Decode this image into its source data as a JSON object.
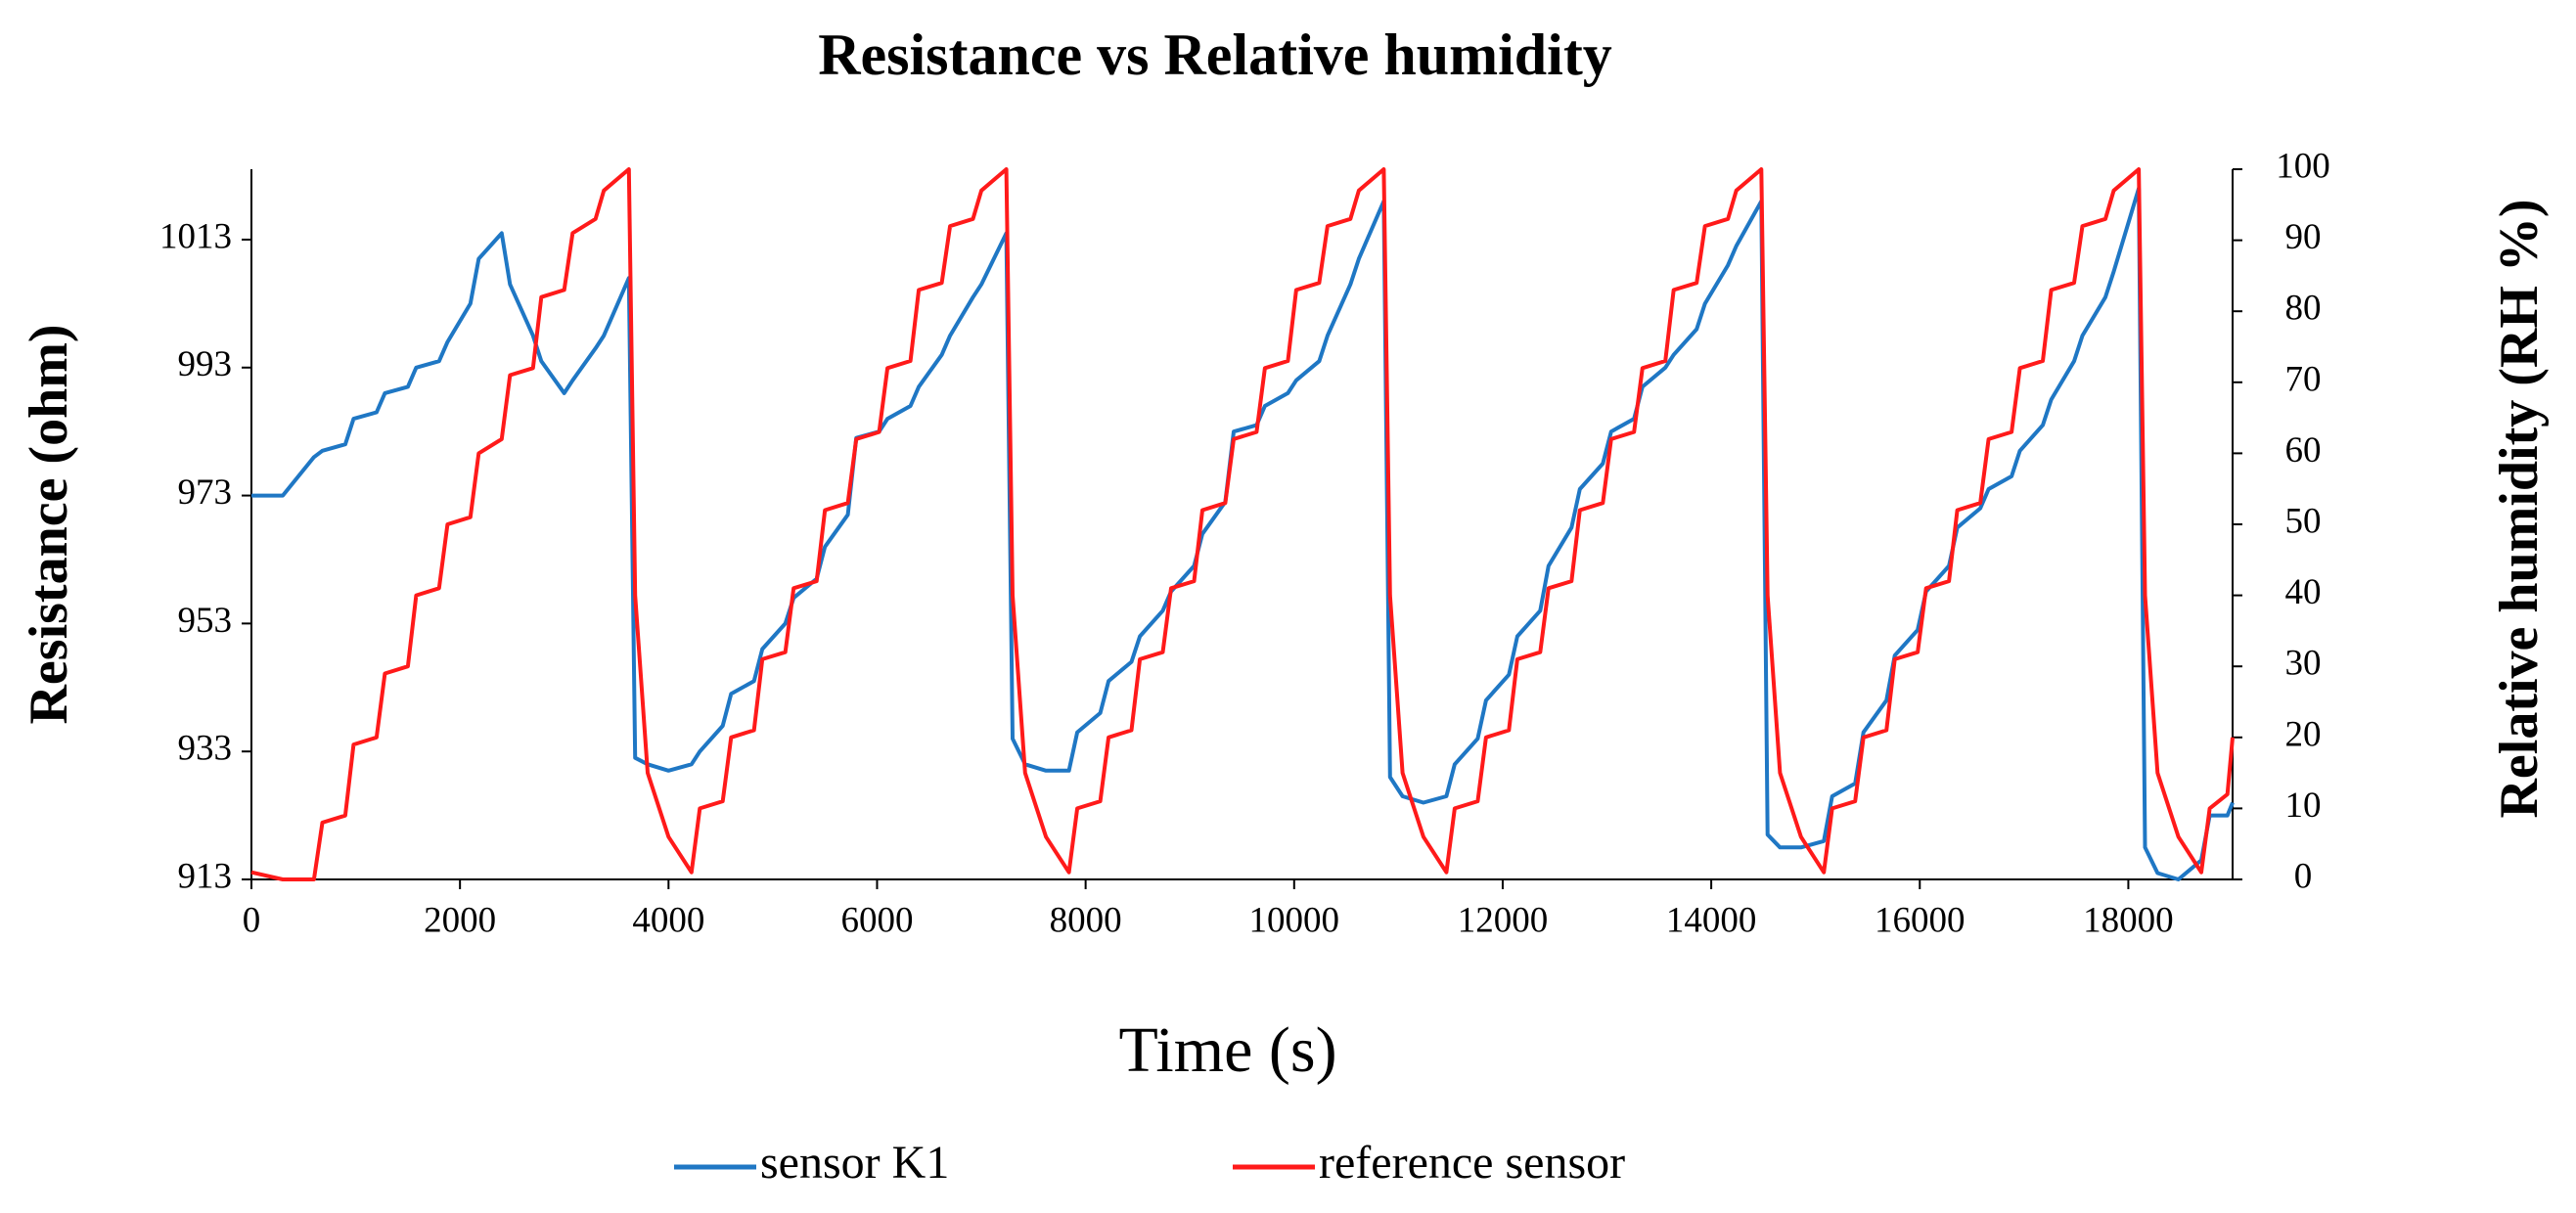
{
  "chart_data": {
    "type": "line",
    "title": "Resistance vs Relative humidity",
    "x_label": "Time (s)",
    "y_label": "Resistance (ohm)",
    "y2_label": "Relative humidity  (RH %)",
    "xlim": [
      0,
      19000
    ],
    "xticks": [
      0,
      2000,
      4000,
      6000,
      8000,
      10000,
      12000,
      14000,
      16000,
      18000
    ],
    "ylim": [
      913,
      1024
    ],
    "yticks": [
      913,
      933,
      953,
      973,
      993,
      1013
    ],
    "y2lim": [
      0,
      100
    ],
    "y2ticks": [
      0,
      10,
      20,
      30,
      40,
      50,
      60,
      70,
      80,
      90,
      100
    ],
    "grid": false,
    "legend": "bottom",
    "x": [
      0,
      300,
      600,
      680,
      900,
      980,
      1200,
      1280,
      1500,
      1580,
      1800,
      1880,
      2100,
      2180,
      2400,
      2480,
      2700,
      2780,
      3000,
      3080,
      3300,
      3380,
      3620,
      3680,
      3800,
      4000,
      4220,
      4300,
      4520,
      4600,
      4820,
      4900,
      5120,
      5200,
      5420,
      5500,
      5720,
      5800,
      6020,
      6100,
      6320,
      6400,
      6620,
      6700,
      6920,
      7000,
      7240,
      7300,
      7420,
      7620,
      7840,
      7920,
      8140,
      8220,
      8440,
      8520,
      8740,
      8820,
      9040,
      9120,
      9340,
      9420,
      9640,
      9720,
      9940,
      10020,
      10240,
      10320,
      10540,
      10620,
      10860,
      10920,
      11040,
      11240,
      11460,
      11540,
      11760,
      11840,
      12060,
      12140,
      12360,
      12440,
      12660,
      12740,
      12960,
      13040,
      13260,
      13340,
      13560,
      13640,
      13860,
      13940,
      14160,
      14240,
      14480,
      14540,
      14660,
      14860,
      15080,
      15160,
      15380,
      15460,
      15680,
      15760,
      15980,
      16060,
      16280,
      16360,
      16580,
      16660,
      16880,
      16960,
      17180,
      17260,
      17480,
      17560,
      17780,
      17860,
      18100,
      18160,
      18280,
      18480,
      18700,
      18780,
      18950,
      19000
    ],
    "series": [
      {
        "name": "sensor K1",
        "color": "#1f77c4",
        "axis": "y",
        "values": [
          973,
          973,
          979,
          980,
          981,
          985,
          986,
          989,
          990,
          993,
          994,
          997,
          1003,
          1010,
          1014,
          1006,
          998,
          994,
          989,
          991,
          996,
          998,
          1007,
          932,
          931,
          930,
          931,
          933,
          937,
          942,
          944,
          949,
          953,
          957,
          960,
          965,
          970,
          982,
          983,
          985,
          987,
          990,
          995,
          998,
          1004,
          1006,
          1014,
          935,
          931,
          930,
          930,
          936,
          939,
          944,
          947,
          951,
          955,
          958,
          962,
          967,
          972,
          983,
          984,
          987,
          989,
          991,
          994,
          998,
          1006,
          1010,
          1019,
          929,
          926,
          925,
          926,
          931,
          935,
          941,
          945,
          951,
          955,
          962,
          968,
          974,
          978,
          983,
          985,
          990,
          993,
          995,
          999,
          1003,
          1009,
          1012,
          1019,
          920,
          918,
          918,
          919,
          926,
          928,
          936,
          941,
          948,
          952,
          958,
          962,
          968,
          971,
          974,
          976,
          980,
          984,
          988,
          994,
          998,
          1004,
          1008,
          1021,
          918,
          914,
          913,
          916,
          923,
          923,
          925
        ]
      },
      {
        "name": "reference sensor",
        "color": "#ff1a1a",
        "axis": "y2",
        "values": [
          1,
          0,
          0,
          8,
          9,
          19,
          20,
          29,
          30,
          40,
          41,
          50,
          51,
          60,
          62,
          71,
          72,
          82,
          83,
          91,
          93,
          97,
          100,
          40,
          15,
          6,
          1,
          10,
          11,
          20,
          21,
          31,
          32,
          41,
          42,
          52,
          53,
          62,
          63,
          72,
          73,
          83,
          84,
          92,
          93,
          97,
          100,
          40,
          15,
          6,
          1,
          10,
          11,
          20,
          21,
          31,
          32,
          41,
          42,
          52,
          53,
          62,
          63,
          72,
          73,
          83,
          84,
          92,
          93,
          97,
          100,
          40,
          15,
          6,
          1,
          10,
          11,
          20,
          21,
          31,
          32,
          41,
          42,
          52,
          53,
          62,
          63,
          72,
          73,
          83,
          84,
          92,
          93,
          97,
          100,
          40,
          15,
          6,
          1,
          10,
          11,
          20,
          21,
          31,
          32,
          41,
          42,
          52,
          53,
          62,
          63,
          72,
          73,
          83,
          84,
          92,
          93,
          97,
          100,
          40,
          15,
          6,
          1,
          10,
          12,
          20
        ]
      }
    ]
  }
}
